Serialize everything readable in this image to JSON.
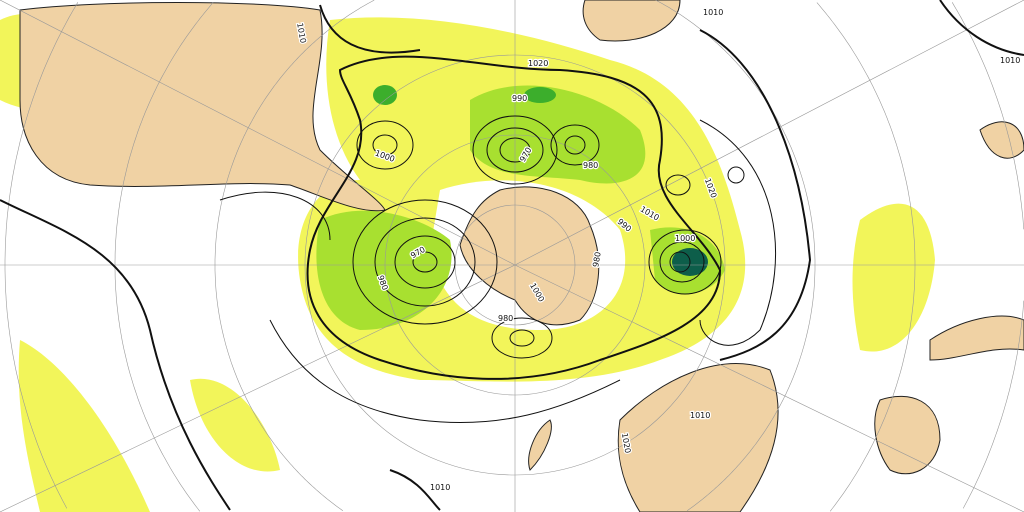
{
  "map": {
    "projection": "south-polar-stereographic",
    "colors": {
      "land": "#f0d2a4",
      "ocean": "#ffffff",
      "precip_light": "#f2f55a",
      "precip_medium": "#a8e030",
      "precip_heavy": "#3cae2c",
      "precip_extreme": "#0d5e4a",
      "isobar": "#111111",
      "graticule": "#888888"
    },
    "isobar_labels": [
      "1010",
      "1010",
      "1010",
      "1010",
      "1010",
      "1020",
      "1020",
      "1020",
      "1000",
      "1000",
      "1000",
      "990",
      "990",
      "980",
      "980",
      "980",
      "980",
      "970",
      "970",
      "1010"
    ]
  }
}
